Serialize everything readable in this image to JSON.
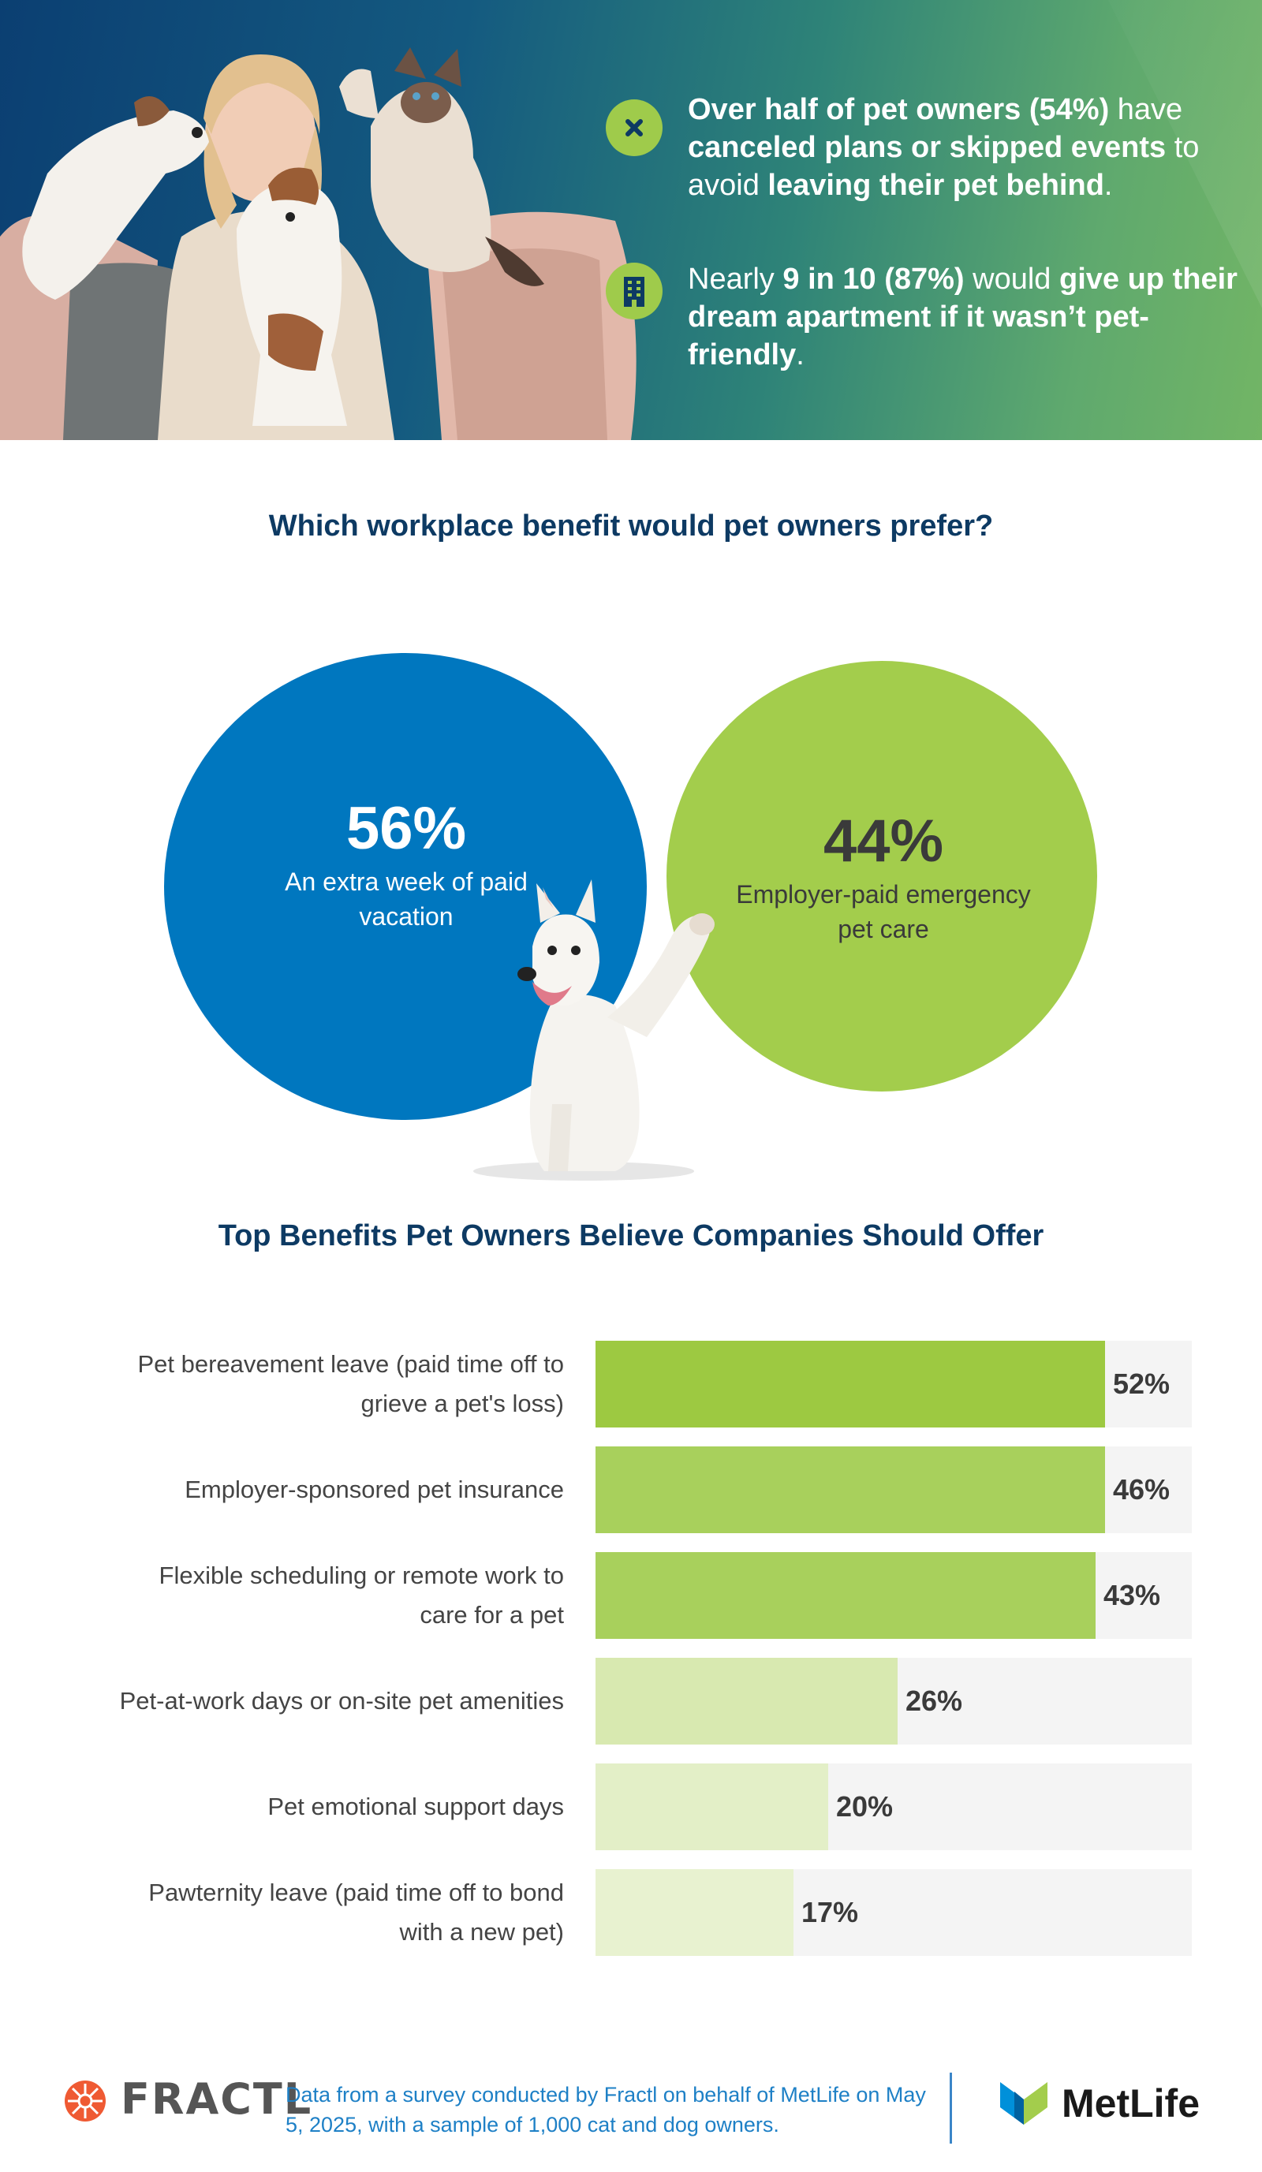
{
  "hero": {
    "facts": [
      {
        "icon": "x-circle-icon",
        "parts": [
          {
            "text": "Over half of pet owners (54%)",
            "bold": true
          },
          {
            "text": " have ",
            "bold": false
          },
          {
            "text": "canceled plans or skipped events",
            "bold": true
          },
          {
            "text": " to avoid ",
            "bold": false
          },
          {
            "text": "leaving their pet behind",
            "bold": true
          },
          {
            "text": ".",
            "bold": false
          }
        ]
      },
      {
        "icon": "apartment-building-icon",
        "parts": [
          {
            "text": "Nearly ",
            "bold": false
          },
          {
            "text": "9 in 10 (87%)",
            "bold": true
          },
          {
            "text": " would ",
            "bold": false
          },
          {
            "text": "give up their dream apartment if it wasn’t pet-friendly",
            "bold": true
          },
          {
            "text": ".",
            "bold": false
          }
        ]
      }
    ]
  },
  "section1": {
    "title": "Which workplace benefit would pet owners prefer?",
    "options": [
      {
        "value": "56%",
        "label": "An extra week of paid vacation",
        "color": "#0077bf",
        "text_color": "#ffffff"
      },
      {
        "value": "44%",
        "label": "Employer-paid emergency pet care",
        "color": "#a3cd4c",
        "text_color": "#3a3a3a"
      }
    ]
  },
  "chart_data": {
    "type": "bar",
    "orientation": "horizontal",
    "title": "Top Benefits Pet Owners Believe Companies Should Offer",
    "categories": [
      "Pet bereavement leave (paid time off to grieve a pet's loss)",
      "Employer-sponsored pet insurance",
      "Flexible scheduling or remote work to care for a pet",
      "Pet-at-work days or on-site pet amenities",
      "Pet emotional support days",
      "Pawternity leave (paid time off to bond with a new pet)"
    ],
    "values": [
      52,
      46,
      43,
      26,
      20,
      17
    ],
    "value_labels": [
      "52%",
      "46%",
      "43%",
      "26%",
      "20%",
      "17%"
    ],
    "xlim": [
      0,
      60
    ],
    "grid": false,
    "bar_colors": [
      "#9dc941",
      "#a8d05c",
      "#a8d05c",
      "#d8e9b0",
      "#e3efc7",
      "#e8f2d0"
    ],
    "track_color": "#f4f4f4"
  },
  "footer": {
    "brand_left": "FRACTL",
    "note": "Data from a survey conducted by Fractl on behalf of MetLife on May 5, 2025, with a sample of 1,000 cat and dog owners.",
    "brand_right": "MetLife"
  }
}
